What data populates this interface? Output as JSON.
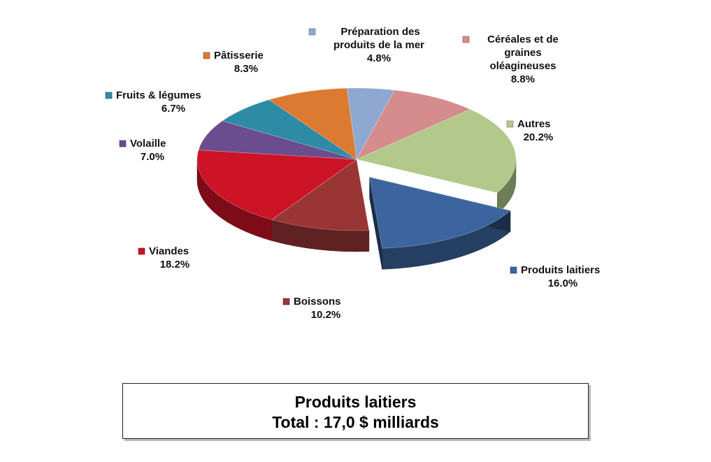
{
  "caption": {
    "line1": "Produits laitiers",
    "line2": "Total : 17,0 $ milliards"
  },
  "chart_data": {
    "type": "pie",
    "style": "3d-exploded",
    "exploded": "Produits laitiers",
    "title": "",
    "slices": [
      {
        "name": "Produits laitiers",
        "label_lines": [
          "Produits laitiers"
        ],
        "value": 16.0,
        "pct_label": "16.0%",
        "color": "#3c659f"
      },
      {
        "name": "Boissons",
        "label_lines": [
          "Boissons"
        ],
        "value": 10.2,
        "pct_label": "10.2%",
        "color": "#9a3535"
      },
      {
        "name": "Viandes",
        "label_lines": [
          "Viandes"
        ],
        "value": 18.2,
        "pct_label": "18.2%",
        "color": "#cc1426"
      },
      {
        "name": "Volaille",
        "label_lines": [
          "Volaille"
        ],
        "value": 7.0,
        "pct_label": "7.0%",
        "color": "#6b4c8e"
      },
      {
        "name": "Fruits & légumes",
        "label_lines": [
          "Fruits & légumes"
        ],
        "value": 6.7,
        "pct_label": "6.7%",
        "color": "#2e8ba6"
      },
      {
        "name": "Pâtisserie",
        "label_lines": [
          "Pâtisserie"
        ],
        "value": 8.3,
        "pct_label": "8.3%",
        "color": "#db7a30"
      },
      {
        "name": "Préparation des produits de la mer",
        "label_lines": [
          "Préparation des",
          "produits de la mer"
        ],
        "value": 4.8,
        "pct_label": "4.8%",
        "color": "#8fa8d2"
      },
      {
        "name": "Céréales et de graines oléagineuses",
        "label_lines": [
          "Céréales et de",
          "graines",
          "oléagineuses"
        ],
        "value": 8.8,
        "pct_label": "8.8%",
        "color": "#d58c8c"
      },
      {
        "name": "Autres",
        "label_lines": [
          "Autres"
        ],
        "value": 20.2,
        "pct_label": "20.2%",
        "color": "#b3c98c"
      }
    ]
  }
}
